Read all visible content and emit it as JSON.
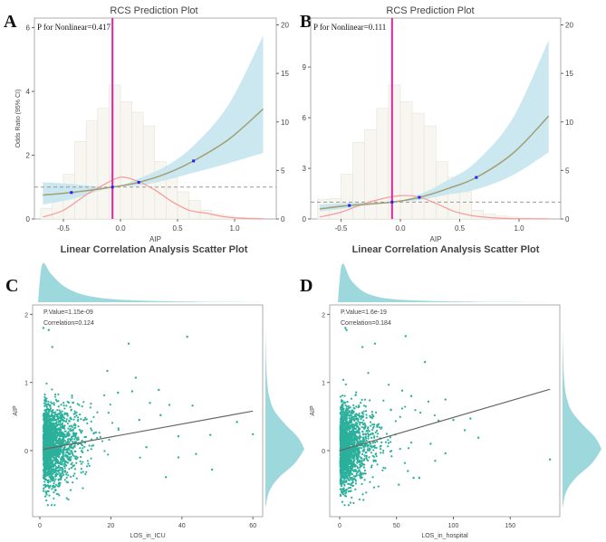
{
  "chart_data": [
    {
      "panel": "A",
      "type": "line",
      "title": "RCS Prediction Plot",
      "annotation": "P for Nonlinear=0.417",
      "xlabel": "AIP",
      "ylabel": "Odds Ratio (95% CI)",
      "xlim": [
        -0.75,
        1.3
      ],
      "ylim": [
        0,
        6.3
      ],
      "y2lim": [
        0,
        20.7
      ],
      "xticks": [
        -0.5,
        0,
        0.5,
        1.0
      ],
      "xtick_labels": [
        "-0.5",
        "0.0",
        "0.5",
        "1.0"
      ],
      "yticks": [
        0,
        2,
        4,
        6
      ],
      "ytick_labels": [
        "0",
        "2",
        "4",
        "6"
      ],
      "y2ticks": [
        0,
        5,
        10,
        15,
        20
      ],
      "y2tick_labels": [
        "0",
        "5",
        "10",
        "15",
        "20"
      ],
      "reference_x": -0.07,
      "reference_or": 1,
      "histogram": {
        "bin_start": -0.7,
        "bin_width": 0.1,
        "counts": [
          1.1,
          2.0,
          4.6,
          8.0,
          10.1,
          11.4,
          13.8,
          12.1,
          11.0,
          9.6,
          5.9,
          4.3,
          2.8,
          1.9,
          0.9,
          0.5,
          0.3,
          0.15,
          0.1
        ]
      },
      "curve": {
        "x": [
          -0.68,
          -0.43,
          -0.07,
          0.16,
          0.4,
          0.64,
          0.95,
          1.25
        ],
        "or": [
          0.75,
          0.83,
          1.0,
          1.15,
          1.42,
          1.82,
          2.5,
          3.45
        ],
        "lower": [
          0.45,
          0.62,
          1.0,
          1.05,
          1.22,
          1.45,
          1.75,
          2.07
        ],
        "upper": [
          1.15,
          1.1,
          1.0,
          1.27,
          1.66,
          2.3,
          3.6,
          5.75
        ]
      },
      "knots": {
        "x": [
          -0.43,
          -0.07,
          0.16,
          0.64
        ],
        "or": [
          0.83,
          1.0,
          1.15,
          1.82
        ]
      },
      "density": {
        "x": [
          -0.68,
          -0.5,
          -0.3,
          -0.15,
          0.0,
          0.15,
          0.3,
          0.45,
          0.6,
          0.75,
          0.9,
          1.05,
          1.25
        ],
        "y": [
          0.2,
          0.9,
          2.5,
          3.5,
          4.3,
          3.9,
          3.0,
          1.8,
          0.9,
          0.6,
          0.25,
          0.08,
          0.02
        ]
      }
    },
    {
      "panel": "B",
      "type": "line",
      "title": "RCS Prediction Plot",
      "annotation": "P for Nonlinear=0.111",
      "xlabel": "AIP",
      "ylabel": "",
      "xlim": [
        -0.75,
        1.3
      ],
      "ylim": [
        0,
        11.9
      ],
      "y2lim": [
        0,
        20.7
      ],
      "xticks": [
        -0.5,
        0,
        0.5,
        1.0
      ],
      "xtick_labels": [
        "-0.5",
        "0.0",
        "0.5",
        "1.0"
      ],
      "yticks": [
        0,
        3,
        6,
        9
      ],
      "ytick_labels": [
        "0",
        "3",
        "6",
        "9"
      ],
      "y2ticks": [
        0,
        5,
        10,
        15,
        20
      ],
      "y2tick_labels": [
        "0",
        "5",
        "10",
        "15",
        "20"
      ],
      "reference_x": -0.07,
      "reference_or": 1,
      "histogram": {
        "bin_start": -0.7,
        "bin_width": 0.1,
        "counts": [
          2.0,
          2.1,
          4.6,
          7.9,
          9.2,
          11.4,
          13.8,
          12.1,
          10.9,
          9.6,
          5.9,
          4.3,
          2.8,
          0.9,
          0.5,
          0.3,
          0.2,
          0.1,
          0.05
        ]
      },
      "curve": {
        "x": [
          -0.68,
          -0.43,
          -0.07,
          0.16,
          0.4,
          0.64,
          0.95,
          1.25
        ],
        "or": [
          0.6,
          0.8,
          1.0,
          1.28,
          1.8,
          2.46,
          3.9,
          6.1
        ],
        "lower": [
          0.45,
          0.65,
          1.0,
          1.12,
          1.45,
          1.75,
          2.6,
          3.95
        ],
        "upper": [
          0.85,
          0.95,
          1.0,
          1.45,
          2.3,
          3.4,
          6.0,
          10.6
        ]
      },
      "knots": {
        "x": [
          -0.43,
          -0.07,
          0.16,
          0.64
        ],
        "or": [
          0.8,
          1.0,
          1.28,
          2.46
        ]
      },
      "density": {
        "x": [
          -0.68,
          -0.5,
          -0.3,
          -0.15,
          0.0,
          0.15,
          0.3,
          0.45,
          0.6,
          0.75,
          0.9,
          1.05,
          1.25
        ],
        "y": [
          0.2,
          0.7,
          1.6,
          2.1,
          2.4,
          2.3,
          1.6,
          0.8,
          0.35,
          0.15,
          0.05,
          0.02,
          0.01
        ]
      }
    },
    {
      "panel": "C",
      "type": "scatter",
      "title": "Linear Correlation Analysis Scatter Plot",
      "annotation_p": "P.Value=1.15e-09",
      "annotation_r": "Correlation=0.124",
      "xlabel": "LOS_in_ICU",
      "ylabel": "AIP",
      "xlim": [
        -2,
        63
      ],
      "ylim": [
        -0.97,
        2.1
      ],
      "xticks": [
        0,
        20,
        40,
        60
      ],
      "xtick_labels": [
        "0",
        "20",
        "40",
        "60"
      ],
      "yticks": [
        0,
        1,
        2
      ],
      "ytick_labels": [
        "0",
        "1",
        "2"
      ],
      "fit_line": {
        "x": [
          1,
          60
        ],
        "y": [
          0.02,
          0.58
        ]
      },
      "bulk": {
        "n": 2000,
        "x_mean": 4,
        "x_min": 1,
        "y_mean": 0.05,
        "y_sd": 0.28,
        "slope": 0.0095
      },
      "outliers": {
        "x": [
          41.5,
          25,
          3.5,
          1,
          2.5,
          60,
          55.5,
          48.5,
          44,
          39,
          48,
          35.5,
          33.5,
          27,
          19,
          43,
          39,
          31,
          36.5,
          30,
          34,
          28,
          26,
          22
        ],
        "y": [
          1.67,
          1.57,
          1.52,
          1.8,
          1.77,
          0.24,
          0.42,
          -0.28,
          -0.05,
          0.21,
          0.23,
          -0.39,
          0.89,
          1.07,
          1.17,
          0.66,
          -0.1,
          0.7,
          0.67,
          0.05,
          0.52,
          0.45,
          0.87,
          0.85
        ]
      },
      "marginal_x": [
        0,
        1,
        0.75,
        0.45,
        0.25,
        0.14,
        0.08,
        0.05,
        0.03,
        0.02,
        0.01,
        0.005,
        0
      ],
      "marginal_y": {
        "y": [
          -0.85,
          -0.6,
          -0.4,
          -0.2,
          0.0,
          0.05,
          0.2,
          0.4,
          0.6,
          0.8,
          1.0,
          1.3,
          1.8
        ],
        "d": [
          0,
          0.1,
          0.35,
          0.75,
          1.0,
          1.0,
          0.85,
          0.5,
          0.22,
          0.1,
          0.05,
          0.02,
          0
        ]
      }
    },
    {
      "panel": "D",
      "type": "scatter",
      "title": "Linear Correlation Analysis Scatter Plot",
      "annotation_p": "P.Value=1.6e-19",
      "annotation_r": "Correlation=0.184",
      "xlabel": "LOS_in_hospital",
      "ylabel": "AIP",
      "xlim": [
        -8,
        195
      ],
      "ylim": [
        -0.97,
        2.1
      ],
      "xticks": [
        0,
        50,
        100,
        150
      ],
      "xtick_labels": [
        "0",
        "50",
        "100",
        "150"
      ],
      "yticks": [
        0,
        1,
        2
      ],
      "ytick_labels": [
        "0",
        "1",
        "2"
      ],
      "fit_line": {
        "x": [
          0,
          185
        ],
        "y": [
          0.0,
          0.9
        ]
      },
      "bulk": {
        "n": 2000,
        "x_mean": 11,
        "x_min": 0.5,
        "y_mean": 0.02,
        "y_sd": 0.28,
        "slope": 0.0049
      },
      "outliers": {
        "x": [
          185,
          122,
          75,
          58,
          31,
          20,
          115,
          110,
          93,
          87,
          84,
          93,
          70,
          65,
          52,
          63,
          55,
          5,
          6,
          78,
          80,
          100,
          60,
          45
        ],
        "y": [
          -0.13,
          0.19,
          1.3,
          1.68,
          1.57,
          1.52,
          0.47,
          0.3,
          0.75,
          0.44,
          -0.15,
          -0.04,
          -0.4,
          -0.4,
          -0.5,
          0.8,
          0.88,
          1.8,
          1.77,
          0.72,
          0.1,
          0.45,
          -0.3,
          0.6
        ]
      },
      "marginal_x": [
        0,
        1,
        0.6,
        0.3,
        0.15,
        0.08,
        0.05,
        0.03,
        0.02,
        0.01,
        0.005,
        0.003,
        0
      ],
      "marginal_y": {
        "y": [
          -0.85,
          -0.6,
          -0.4,
          -0.2,
          0.0,
          0.05,
          0.2,
          0.4,
          0.6,
          0.8,
          1.0,
          1.3,
          1.8
        ],
        "d": [
          0,
          0.1,
          0.35,
          0.75,
          1.0,
          1.0,
          0.85,
          0.5,
          0.22,
          0.1,
          0.05,
          0.02,
          0
        ]
      }
    }
  ],
  "panel_labels": [
    "A",
    "B",
    "C",
    "D"
  ],
  "colors": {
    "ci": "#c5e6f0",
    "curve": "#a39f72",
    "knot": "#1f1fff",
    "reference": "#e0259f",
    "density": "#f59b9b",
    "bars": "#f7f6f1",
    "scatter": "#2bb09b",
    "marginal": "#92d4d9",
    "fit": "#666666"
  }
}
